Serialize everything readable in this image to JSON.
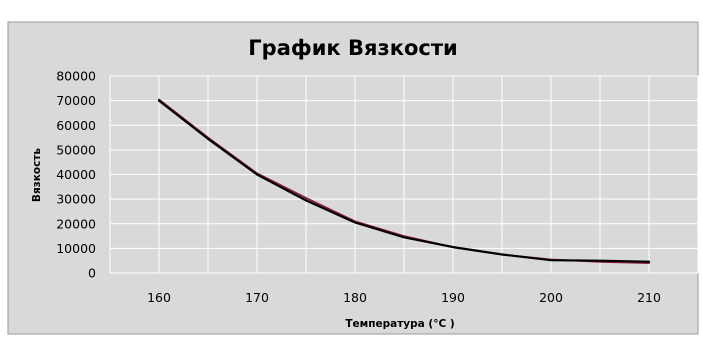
{
  "chart_data": {
    "type": "line",
    "title": "График Вязкости",
    "xlabel": "Температура (°C )",
    "ylabel": "Вязкость",
    "xlim": [
      155,
      215
    ],
    "ylim": [
      0,
      80000
    ],
    "x_ticks": [
      160,
      170,
      180,
      190,
      200,
      210
    ],
    "y_ticks": [
      0,
      10000,
      20000,
      30000,
      40000,
      50000,
      60000,
      70000,
      80000
    ],
    "grid": true,
    "legend": "none",
    "series": [
      {
        "color": "#8b1a4a",
        "x": [
          160,
          165,
          170,
          175,
          180,
          185,
          190,
          195,
          200,
          205,
          210
        ],
        "y": [
          70500,
          55000,
          40500,
          30500,
          21000,
          15000,
          10500,
          7500,
          5500,
          4500,
          4000
        ]
      },
      {
        "color": "#000000",
        "x": [
          160,
          165,
          170,
          175,
          180,
          185,
          190,
          195,
          200,
          205,
          210
        ],
        "y": [
          70000,
          54500,
          40000,
          29500,
          20500,
          14500,
          10500,
          7500,
          5200,
          5000,
          4600
        ]
      }
    ],
    "colors": {
      "plot_bg": "#d9d9d9",
      "outer_bg": "#d9d9d9",
      "grid": "#ffffff"
    }
  }
}
